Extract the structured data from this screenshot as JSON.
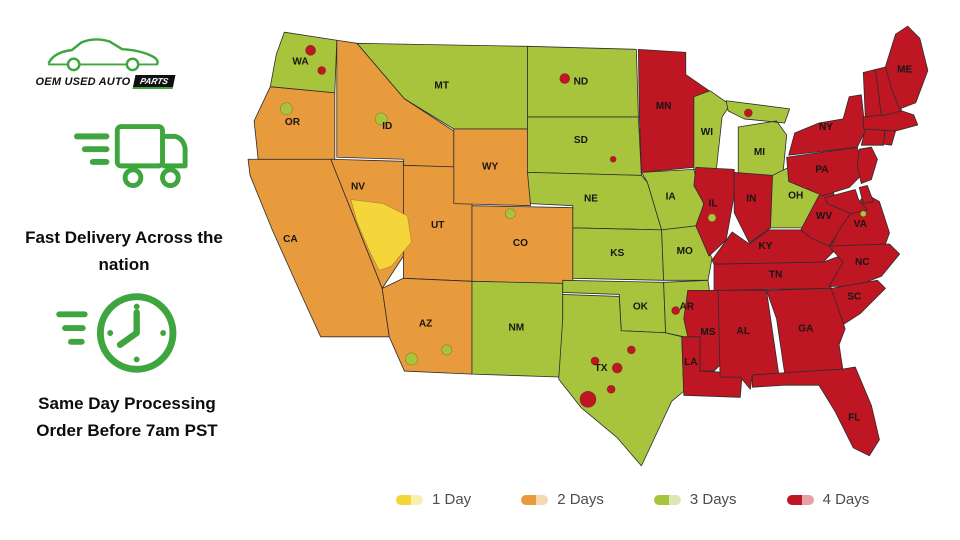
{
  "brand": {
    "logo_line": "OEM USED AUTO",
    "logo_badge": "PARTS",
    "tagline1": "Fast Delivery Across the nation",
    "tagline2": "Same Day Processing Order Before 7am PST"
  },
  "colors": {
    "one_day": "#F4D63A",
    "two_days": "#E89B3D",
    "three_days": "#A8C43C",
    "four_days": "#BE1622",
    "accent_green": "#3FA63F",
    "border": "#2d2d2d",
    "legend_text": "#4d4d4d"
  },
  "legend": [
    {
      "label": "1 Day",
      "category": "one_day"
    },
    {
      "label": "2 Days",
      "category": "two_days"
    },
    {
      "label": "3 Days",
      "category": "three_days"
    },
    {
      "label": "4 Days",
      "category": "four_days"
    }
  ],
  "map": {
    "states": [
      {
        "id": "CA",
        "label": "CA",
        "category": "two_days"
      },
      {
        "id": "OR",
        "label": "OR",
        "category": "two_days"
      },
      {
        "id": "WA",
        "label": "WA",
        "category": "three_days"
      },
      {
        "id": "ID",
        "label": "ID",
        "category": "two_days"
      },
      {
        "id": "MT",
        "label": "MT",
        "category": "three_days"
      },
      {
        "id": "NV",
        "label": "NV",
        "category": "two_days"
      },
      {
        "id": "UT",
        "label": "UT",
        "category": "two_days"
      },
      {
        "id": "WY",
        "label": "WY",
        "category": "two_days"
      },
      {
        "id": "CO",
        "label": "CO",
        "category": "two_days"
      },
      {
        "id": "AZ",
        "label": "AZ",
        "category": "two_days"
      },
      {
        "id": "NM",
        "label": "NM",
        "category": "three_days"
      },
      {
        "id": "ND",
        "label": "ND",
        "category": "three_days"
      },
      {
        "id": "SD",
        "label": "SD",
        "category": "three_days"
      },
      {
        "id": "NE",
        "label": "NE",
        "category": "three_days"
      },
      {
        "id": "KS",
        "label": "KS",
        "category": "three_days"
      },
      {
        "id": "OK",
        "label": "OK",
        "category": "three_days"
      },
      {
        "id": "TX",
        "label": "TX",
        "category": "three_days"
      },
      {
        "id": "MN",
        "label": "MN",
        "category": "four_days"
      },
      {
        "id": "IA",
        "label": "IA",
        "category": "three_days"
      },
      {
        "id": "MO",
        "label": "MO",
        "category": "three_days"
      },
      {
        "id": "AR",
        "label": "AR",
        "category": "three_days"
      },
      {
        "id": "MS",
        "label": "MS",
        "category": "four_days"
      },
      {
        "id": "LA",
        "label": "LA",
        "category": "four_days"
      },
      {
        "id": "WI",
        "label": "WI",
        "category": "three_days"
      },
      {
        "id": "MI",
        "label": "MI",
        "category": "three_days"
      },
      {
        "id": "IL",
        "label": "IL",
        "category": "four_days"
      },
      {
        "id": "IN",
        "label": "IN",
        "category": "four_days"
      },
      {
        "id": "OH",
        "label": "OH",
        "category": "three_days"
      },
      {
        "id": "KY",
        "label": "KY",
        "category": "four_days"
      },
      {
        "id": "TN",
        "label": "TN",
        "category": "four_days"
      },
      {
        "id": "WV",
        "label": "WV",
        "category": "four_days"
      },
      {
        "id": "VA",
        "label": "VA",
        "category": "four_days"
      },
      {
        "id": "NC",
        "label": "NC",
        "category": "four_days"
      },
      {
        "id": "SC",
        "label": "SC",
        "category": "four_days"
      },
      {
        "id": "GA",
        "label": "GA",
        "category": "four_days"
      },
      {
        "id": "AL",
        "label": "AL",
        "category": "four_days"
      },
      {
        "id": "FL",
        "label": "FL",
        "category": "four_days"
      },
      {
        "id": "PA",
        "label": "PA",
        "category": "four_days"
      },
      {
        "id": "NY",
        "label": "NY",
        "category": "four_days"
      },
      {
        "id": "NJ",
        "label": "",
        "category": "four_days"
      },
      {
        "id": "DE",
        "label": "",
        "category": "four_days"
      },
      {
        "id": "MD",
        "label": "",
        "category": "four_days"
      },
      {
        "id": "CT",
        "label": "",
        "category": "four_days"
      },
      {
        "id": "RI",
        "label": "",
        "category": "four_days"
      },
      {
        "id": "MA",
        "label": "",
        "category": "four_days"
      },
      {
        "id": "VT",
        "label": "",
        "category": "four_days"
      },
      {
        "id": "NH",
        "label": "",
        "category": "four_days"
      },
      {
        "id": "ME",
        "label": "ME",
        "category": "four_days"
      }
    ]
  }
}
